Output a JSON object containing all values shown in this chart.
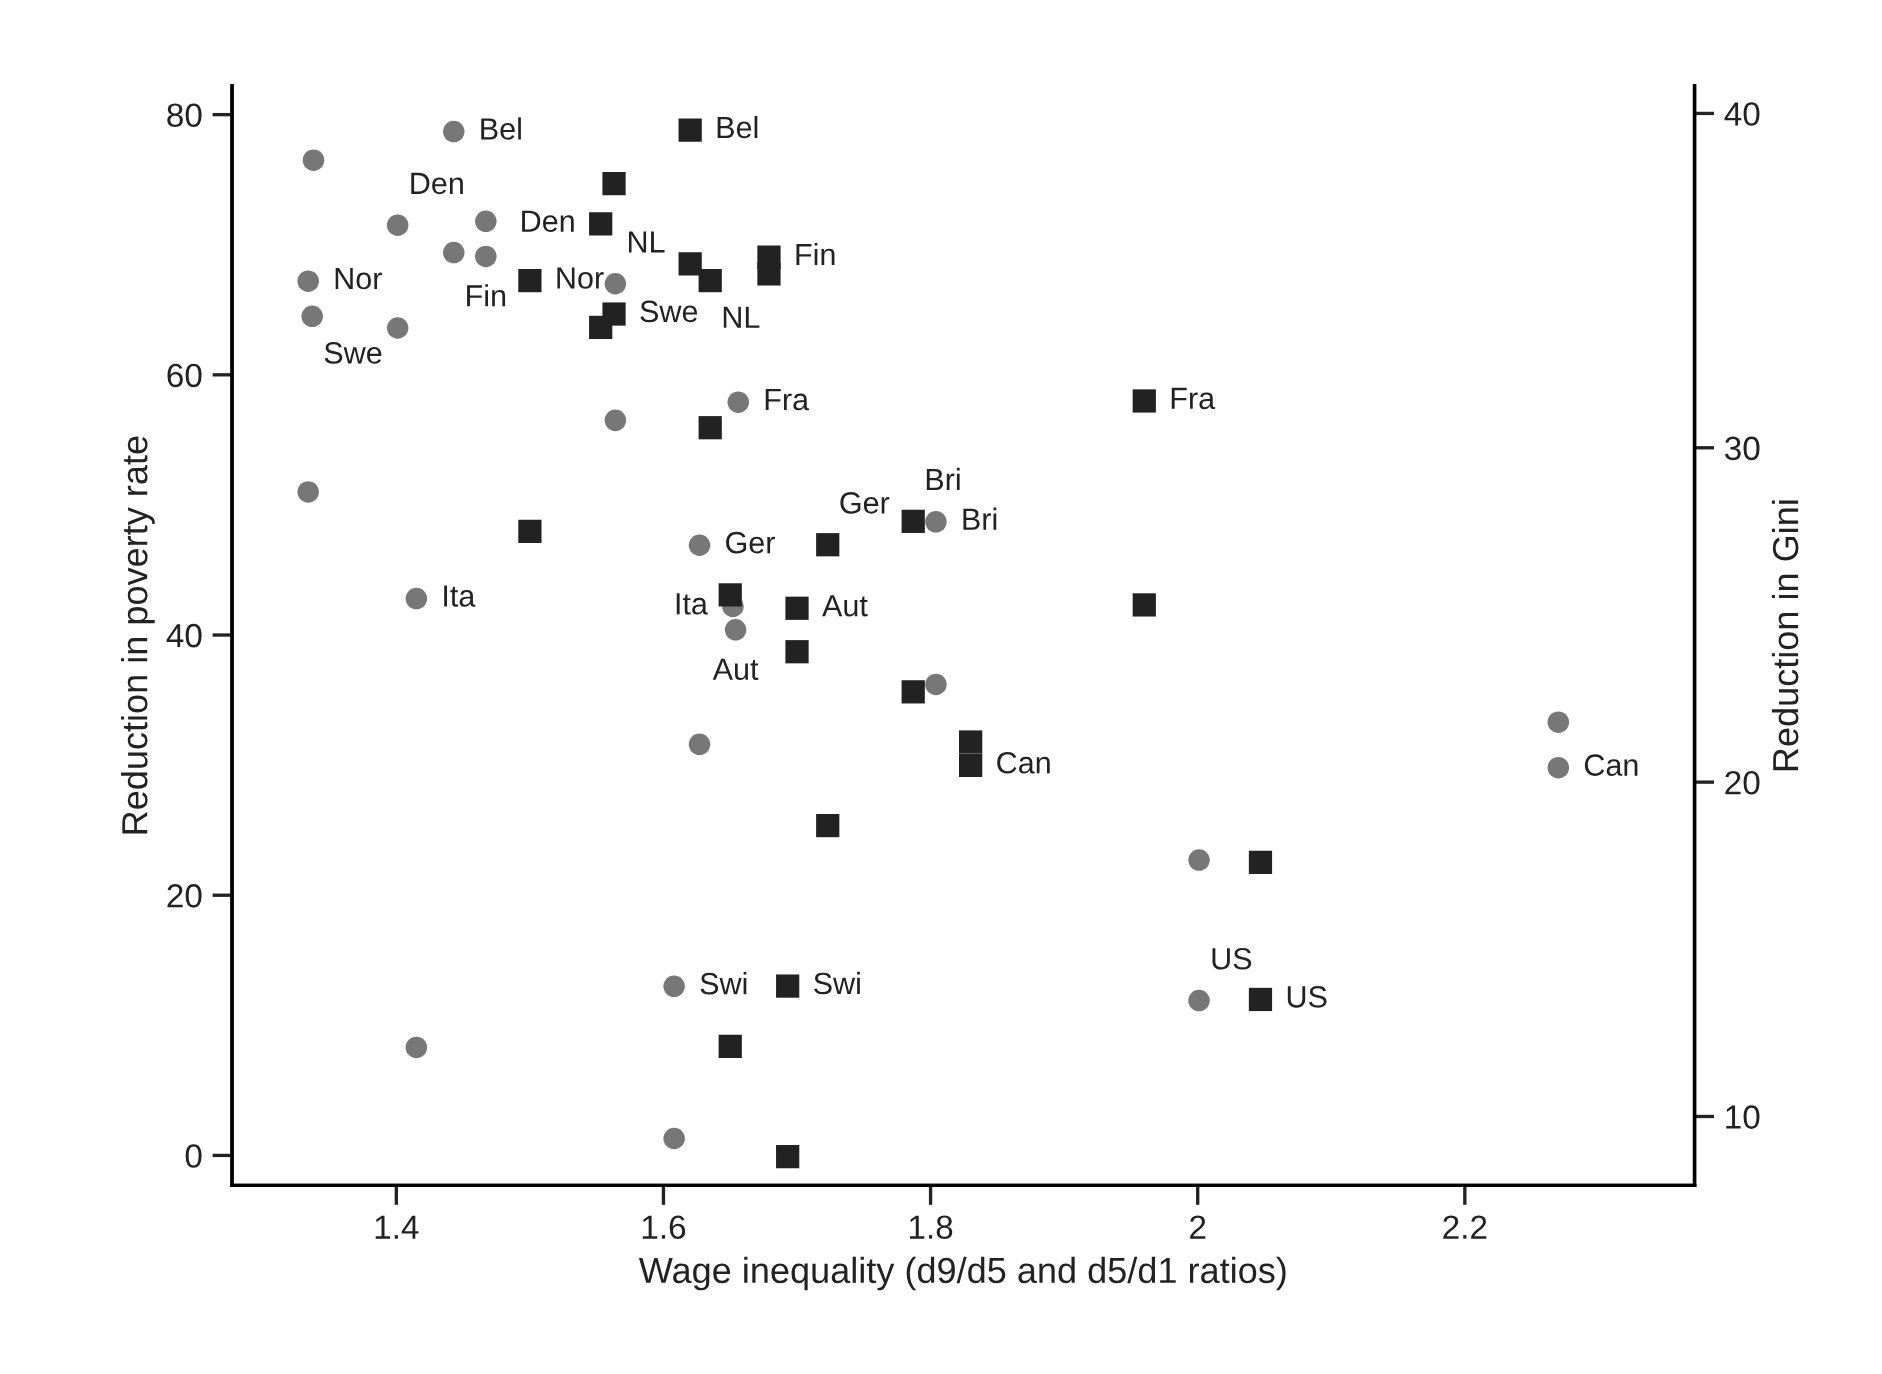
{
  "chart_data": {
    "type": "scatter",
    "xlabel": "Wage inequality (d9/d5 and d5/d1 ratios)",
    "ylabel": "Reduction in poverty rate",
    "y2label": "Reduction in Gini",
    "xlim": [
      1.277,
      2.372
    ],
    "xticks": [
      1.4,
      1.6,
      1.8,
      2,
      2.2
    ],
    "ylim": [
      -2.3,
      82.2
    ],
    "yticks": [
      0,
      20,
      40,
      60,
      80
    ],
    "y2lim": [
      7.94,
      40.82
    ],
    "y2ticks": [
      10,
      20,
      30,
      40
    ],
    "grid": false,
    "series": [
      {
        "marker": "circle",
        "color": "#777777",
        "x": [
          1.443,
          1.338,
          1.401,
          1.467,
          1.443,
          1.467,
          1.334,
          1.564,
          1.337,
          1.401,
          1.656,
          1.564,
          1.334,
          1.804,
          1.627,
          1.415,
          1.652,
          1.654,
          1.804,
          1.627,
          1.608,
          1.415,
          1.608,
          2.27,
          2.27,
          2.001,
          2.001
        ],
        "values": [
          78.7,
          76.5,
          71.5,
          71.8,
          69.4,
          69.1,
          67.2,
          67.0,
          64.5,
          63.6,
          57.9,
          56.5,
          51.0,
          48.7,
          46.9,
          42.8,
          42.2,
          40.4,
          36.2,
          31.6,
          13.0,
          8.3,
          1.3,
          33.3,
          29.8,
          22.7,
          11.9
        ],
        "value_labels": [
          "Bel",
          null,
          "Den",
          null,
          null,
          "Fin",
          "Nor",
          "NL",
          "Swe",
          null,
          "Fra",
          null,
          null,
          "Bri",
          "Ger",
          "Ita",
          "Ita",
          "Aut",
          null,
          null,
          "Swi",
          null,
          null,
          null,
          "Can",
          null,
          "US"
        ]
      },
      {
        "marker": "square",
        "color": "#222222",
        "axis": "y2",
        "x": [
          1.62,
          1.563,
          1.553,
          1.62,
          1.679,
          1.679,
          1.635,
          1.5,
          1.563,
          1.553,
          1.635,
          1.5,
          1.787,
          1.723,
          1.65,
          1.7,
          1.7,
          1.96,
          1.96,
          1.787,
          1.83,
          1.83,
          1.723,
          1.693,
          1.65,
          1.693,
          2.047,
          2.047
        ],
        "values": [
          39.5,
          37.9,
          36.7,
          35.5,
          35.7,
          35.2,
          35.0,
          35.0,
          34.0,
          33.6,
          30.6,
          27.5,
          27.8,
          27.1,
          25.6,
          25.2,
          23.9,
          31.4,
          25.3,
          22.7,
          21.2,
          20.5,
          18.7,
          13.9,
          12.1,
          8.8,
          17.6,
          13.5
        ],
        "value_labels": [
          "Bel",
          null,
          "Den",
          null,
          "Fin",
          null,
          "NL",
          "Nor",
          "Swe",
          null,
          null,
          null,
          "Bri",
          "Ger",
          null,
          "Aut",
          null,
          "Fra",
          null,
          null,
          null,
          "Can",
          null,
          "Swi",
          null,
          null,
          null,
          "US"
        ]
      }
    ]
  }
}
